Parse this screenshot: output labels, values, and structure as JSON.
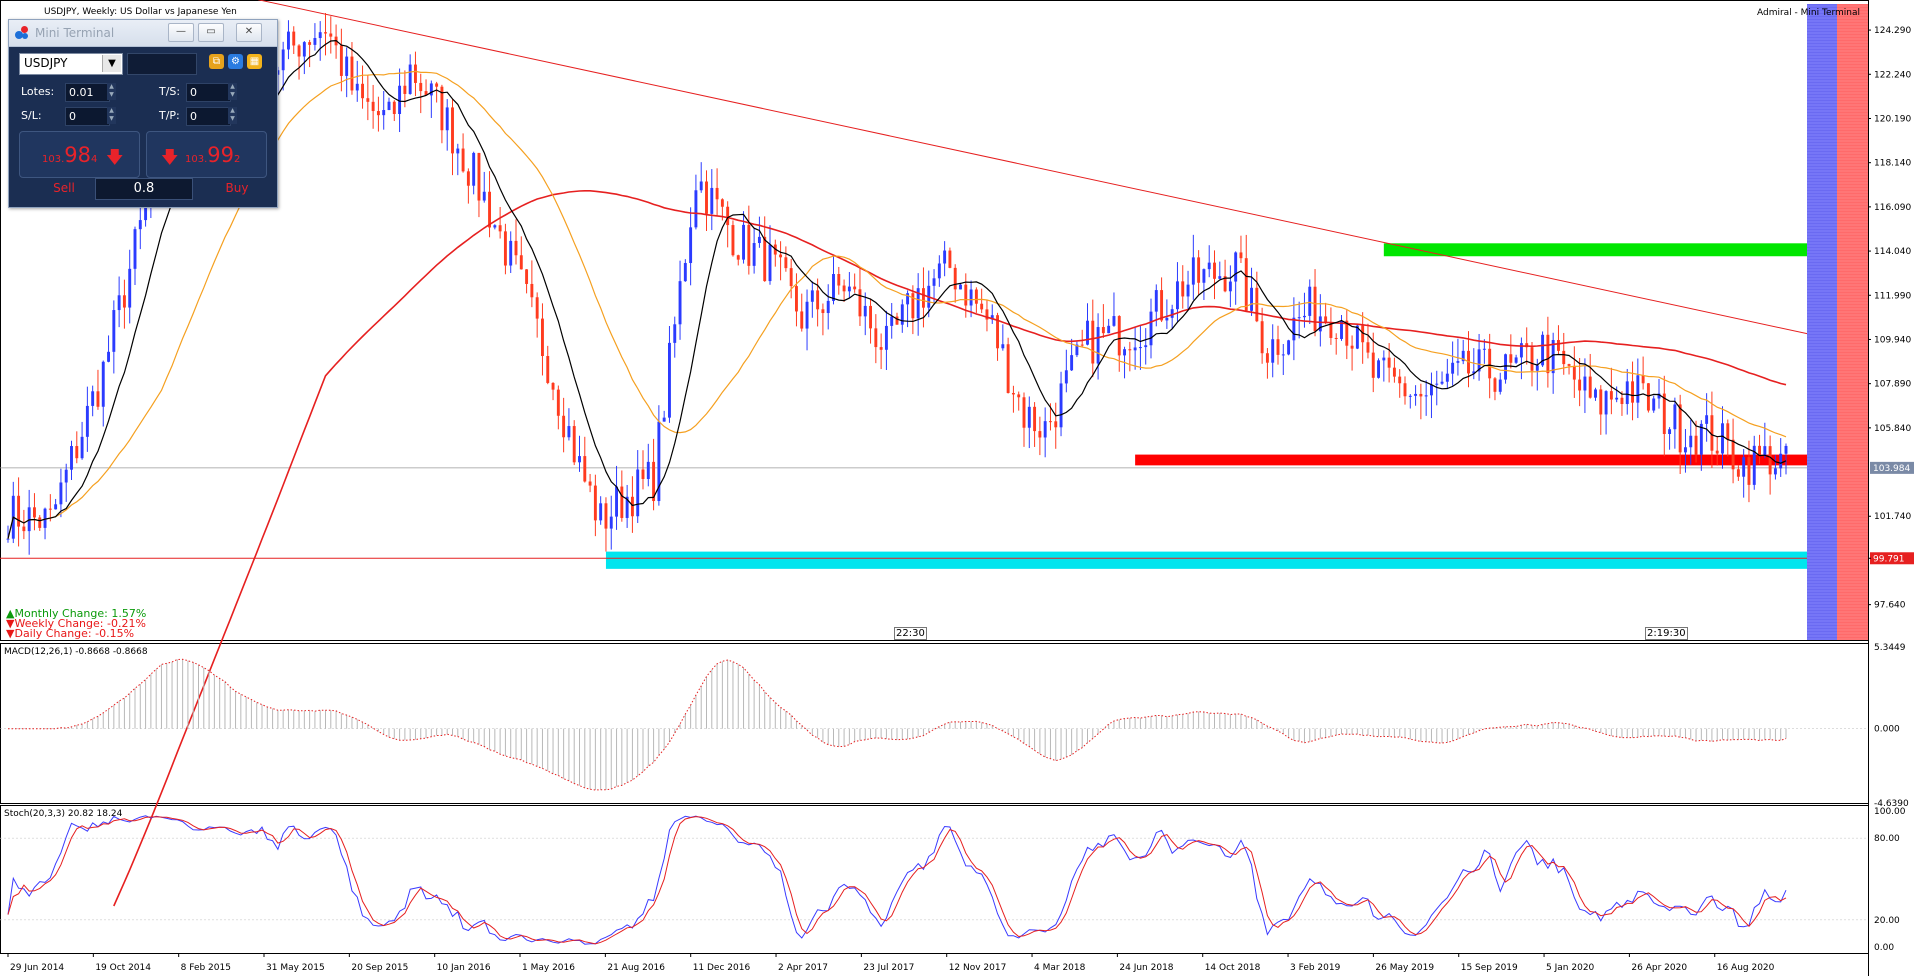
{
  "window": {
    "title": "USDJPY, Weekly: US Dollar vs Japanese Yen",
    "corner_label": "Admiral - Mini Terminal"
  },
  "mini_terminal": {
    "title": "Mini Terminal",
    "symbol": "USDJPY",
    "lots_label": "Lotes:",
    "lots_value": "0.01",
    "ts_label": "T/S:",
    "ts_value": "0",
    "sl_label": "S/L:",
    "sl_value": "0",
    "tp_label": "T/P:",
    "tp_value": "0",
    "sell_price_prefix": "103.",
    "sell_price_big": "98",
    "sell_price_small": "4",
    "buy_price_prefix": "103.",
    "buy_price_big": "99",
    "buy_price_small": "2",
    "sell_label": "Sell",
    "buy_label": "Buy",
    "spread": "0.8",
    "colors": {
      "bg": "#1b2e52",
      "price": "#e8232a"
    }
  },
  "changes": {
    "monthly": "Monthly Change: 1.57%",
    "weekly": "Weekly Change: -0.21%",
    "daily": "Daily Change: -0.15%"
  },
  "time_labels": {
    "left": "22:30",
    "right": "2:19:30"
  },
  "chart_data": [
    {
      "type": "candlestick",
      "title": "USDJPY, Weekly: US Dollar vs Japanese Yen",
      "y_ticks": [
        "124.290",
        "122.240",
        "120.190",
        "118.140",
        "116.090",
        "114.040",
        "111.990",
        "109.940",
        "107.890",
        "105.840",
        "101.740",
        "99.791",
        "97.640"
      ],
      "ylim": [
        96.0,
        125.5
      ],
      "x_ticks": [
        "29 Jun 2014",
        "19 Oct 2014",
        "8 Feb 2015",
        "31 May 2015",
        "20 Sep 2015",
        "10 Jan 2016",
        "1 May 2016",
        "21 Aug 2016",
        "11 Dec 2016",
        "2 Apr 2017",
        "23 Jul 2017",
        "12 Nov 2017",
        "4 Mar 2018",
        "24 Jun 2018",
        "14 Oct 2018",
        "3 Feb 2019",
        "26 May 2019",
        "15 Sep 2019",
        "5 Jan 2020",
        "26 Apr 2020",
        "16 Aug 2020"
      ],
      "current_price": "103.984",
      "marked_price": "99.791",
      "series_keys": [
        {
          "key": "close",
          "color": "#2b3bff"
        },
        {
          "key": "ma_fast",
          "color": "#000000"
        },
        {
          "key": "ma_mid",
          "color": "#f5a020"
        },
        {
          "key": "ma_slow",
          "color": "#e62020"
        }
      ],
      "zones": [
        {
          "color": "#00e600",
          "y_top": 114.4,
          "y_bottom": 113.8
        },
        {
          "color": "#ff0000",
          "y_top": 104.6,
          "y_bottom": 104.1
        },
        {
          "color": "#00e5ee",
          "y_top": 100.1,
          "y_bottom": 99.3
        }
      ],
      "trendline": {
        "color": "#e62020",
        "from": [
          0,
          125.7
        ],
        "to": [
          336,
          109.6
        ]
      },
      "weeks": 336,
      "anchors": [
        [
          0,
          101.8
        ],
        [
          8,
          101.5
        ],
        [
          18,
          108.5
        ],
        [
          26,
          116.0
        ],
        [
          32,
          120.0
        ],
        [
          40,
          119.8
        ],
        [
          48,
          122.0
        ],
        [
          55,
          123.8
        ],
        [
          60,
          124.5
        ],
        [
          66,
          121.0
        ],
        [
          72,
          120.0
        ],
        [
          76,
          122.5
        ],
        [
          82,
          120.5
        ],
        [
          90,
          116.5
        ],
        [
          96,
          113.0
        ],
        [
          102,
          109.0
        ],
        [
          108,
          104.0
        ],
        [
          112,
          101.5
        ],
        [
          116,
          102.5
        ],
        [
          122,
          103.5
        ],
        [
          130,
          117.5
        ],
        [
          138,
          114.5
        ],
        [
          144,
          113.5
        ],
        [
          150,
          111.0
        ],
        [
          158,
          112.5
        ],
        [
          166,
          109.5
        ],
        [
          172,
          112.0
        ],
        [
          178,
          113.3
        ],
        [
          186,
          110.5
        ],
        [
          192,
          106.5
        ],
        [
          196,
          105.8
        ],
        [
          204,
          109.8
        ],
        [
          214,
          110.5
        ],
        [
          222,
          112.5
        ],
        [
          232,
          113.3
        ],
        [
          238,
          109.5
        ],
        [
          246,
          111.3
        ],
        [
          252,
          111.0
        ],
        [
          258,
          108.3
        ],
        [
          268,
          107.2
        ],
        [
          276,
          108.5
        ],
        [
          284,
          108.4
        ],
        [
          290,
          109.5
        ],
        [
          296,
          108.0
        ],
        [
          300,
          106.8
        ],
        [
          306,
          107.8
        ],
        [
          316,
          105.8
        ],
        [
          322,
          105.5
        ],
        [
          328,
          104.2
        ],
        [
          333,
          104.5
        ],
        [
          336,
          104.0
        ]
      ]
    },
    {
      "type": "bar",
      "title": "MACD(12,26,1) -0.8668 -0.8668",
      "y_ticks": [
        "5.3449",
        "0.000",
        "-4.6390"
      ],
      "ylim": [
        -4.639,
        5.3449
      ]
    },
    {
      "type": "line",
      "title": "Stoch(20,3,3) 20.82 18.24",
      "y_ticks": [
        "100.00",
        "80.00",
        "20.00",
        "0.00"
      ],
      "ylim": [
        0,
        100
      ]
    }
  ]
}
